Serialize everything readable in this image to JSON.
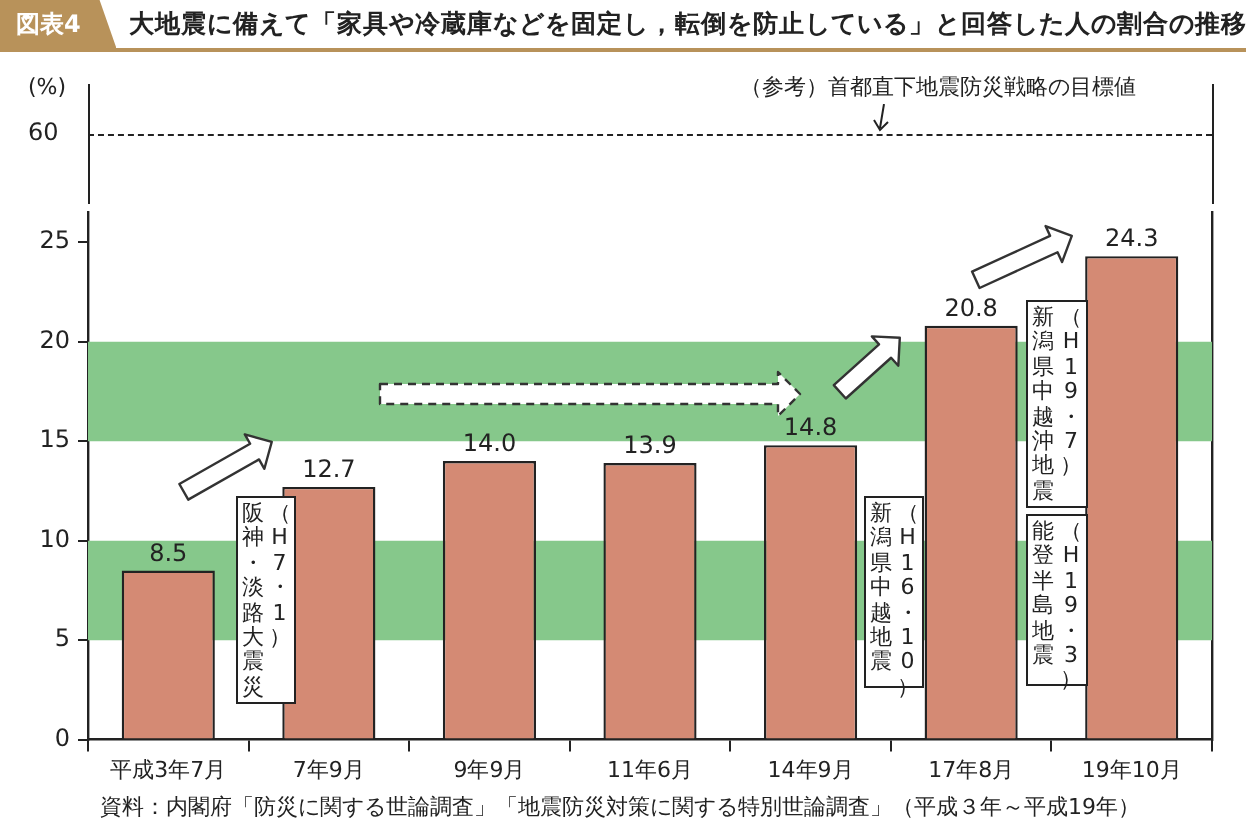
{
  "chart_data": [
    {
      "type": "other",
      "title": "大地震に備えて「家具や冷蔵庫などを固定し，転倒を防止している」と回答した人の割合の推移",
      "subtitle": "図表4",
      "annotations": [
        "60",
        "（参考）首都直下地震防災戦略の目標値"
      ]
    },
    {
      "type": "bar",
      "ylabel": "(%)",
      "categories": [
        "平成3年7月",
        "7年9月",
        "9年9月",
        "11年6月",
        "14年9月",
        "17年8月",
        "19年10月"
      ],
      "values": [
        8.5,
        12.7,
        14.0,
        13.9,
        14.8,
        20.8,
        24.3
      ],
      "value_labels": [
        "8.5",
        "12.7",
        "14.0",
        "13.9",
        "14.8",
        "20.8",
        "24.3"
      ],
      "color": "#d48a74",
      "ylim": [
        0,
        26.5
      ],
      "yticks": [
        0,
        5,
        10,
        15,
        20,
        25
      ],
      "grid": false,
      "legend": false,
      "bands": [
        {
          "axis": "y",
          "from": 5,
          "to": 10,
          "color": "#86c88b"
        },
        {
          "axis": "y",
          "from": 15,
          "to": 20,
          "color": "#86c88b"
        }
      ],
      "annotations": [
        "阪神・淡路大震災",
        "（H7・1）",
        "新潟県中越地震",
        "（H16・10）",
        "新潟県中越沖地震",
        "（H19・7）",
        "能登半島地震",
        "（H19・3）",
        "資料：内閣府「防災に関する世論調査」「地震防災対策に関する特別世論調査」（平成３年～平成19年）"
      ]
    }
  ]
}
